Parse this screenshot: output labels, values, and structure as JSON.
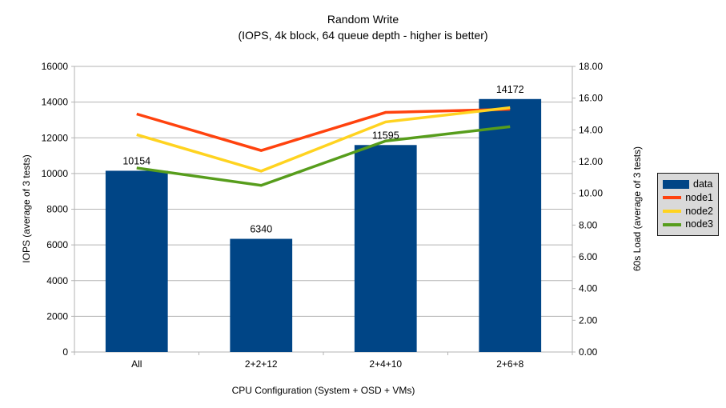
{
  "title": "Random Write",
  "subtitle": "(IOPS, 4k block, 64 queue depth - higher is better)",
  "chart_data": {
    "type": "bar",
    "subtype": "bar-and-line-combo",
    "categories": [
      "All",
      "2+2+12",
      "2+4+10",
      "2+6+8"
    ],
    "bar_series": {
      "name": "data",
      "axis": "left",
      "color": "#004586",
      "values": [
        10154,
        6340,
        11595,
        14172
      ],
      "labels": [
        "10154",
        "6340",
        "11595",
        "14172"
      ]
    },
    "line_series": [
      {
        "name": "node1",
        "axis": "right",
        "color": "#ff420e",
        "values": [
          15.0,
          12.7,
          15.1,
          15.3
        ]
      },
      {
        "name": "node2",
        "axis": "right",
        "color": "#ffd320",
        "values": [
          13.7,
          11.4,
          14.5,
          15.4
        ]
      },
      {
        "name": "node3",
        "axis": "right",
        "color": "#579d1c",
        "values": [
          11.6,
          10.5,
          13.3,
          14.2
        ]
      }
    ],
    "left_axis": {
      "title": "IOPS (average of 3 tests)",
      "min": 0,
      "max": 16000,
      "step": 2000,
      "tick_labels": [
        "0",
        "2000",
        "4000",
        "6000",
        "8000",
        "10000",
        "12000",
        "14000",
        "16000"
      ]
    },
    "right_axis": {
      "title": "60s Load (average of 3 tests)",
      "min": 0,
      "max": 18,
      "step": 2,
      "tick_labels": [
        "0.00",
        "2.00",
        "4.00",
        "6.00",
        "8.00",
        "10.00",
        "12.00",
        "14.00",
        "16.00",
        "18.00"
      ]
    },
    "x_axis": {
      "title": "CPU Configuration (System + OSD + VMs)"
    },
    "legend": {
      "position": "right",
      "entries": [
        {
          "label": "data",
          "color": "#004586",
          "swatch": "box"
        },
        {
          "label": "node1",
          "color": "#ff420e",
          "swatch": "line"
        },
        {
          "label": "node2",
          "color": "#ffd320",
          "swatch": "line"
        },
        {
          "label": "node3",
          "color": "#579d1c",
          "swatch": "line"
        }
      ]
    },
    "grid": true,
    "grid_color": "#b3b3b3",
    "axis_color": "#b3b3b3",
    "background": "#ffffff"
  }
}
